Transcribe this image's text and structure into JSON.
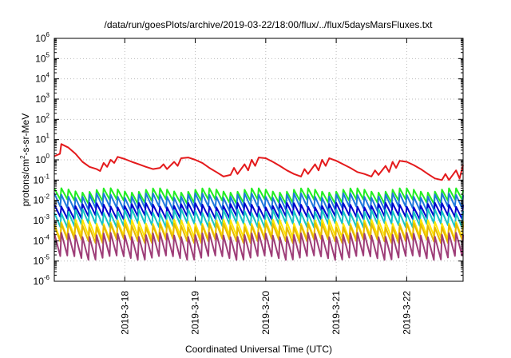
{
  "chart_data": {
    "type": "line",
    "title": "/data/run/goesPlots/archive/2019-03-22/18:00/flux/../flux/5daysMarsFluxes.txt",
    "xlabel": "Coordinated Universal Time (UTC)",
    "ylabel_parts": {
      "pre": "protons/cm",
      "sup": "2",
      "post": "-s-sr-MeV"
    },
    "yscale": "log",
    "ylim": [
      1e-06,
      1000000.0
    ],
    "xlim": [
      17.0,
      22.8
    ],
    "grid": true,
    "y_ticks": [
      {
        "base": "10",
        "exp": "-6",
        "value": 1e-06
      },
      {
        "base": "10",
        "exp": "-5",
        "value": 1e-05
      },
      {
        "base": "10",
        "exp": "-4",
        "value": 0.0001
      },
      {
        "base": "10",
        "exp": "-3",
        "value": 0.001
      },
      {
        "base": "10",
        "exp": "-2",
        "value": 0.01
      },
      {
        "base": "10",
        "exp": "-1",
        "value": 0.1
      },
      {
        "base": "10",
        "exp": "0",
        "value": 1
      },
      {
        "base": "10",
        "exp": "1",
        "value": 10
      },
      {
        "base": "10",
        "exp": "2",
        "value": 100
      },
      {
        "base": "10",
        "exp": "3",
        "value": 1000
      },
      {
        "base": "10",
        "exp": "4",
        "value": 10000
      },
      {
        "base": "10",
        "exp": "5",
        "value": 100000
      },
      {
        "base": "10",
        "exp": "6",
        "value": 1000000
      }
    ],
    "x_ticks": [
      {
        "label": "2019-3-18",
        "value": 18
      },
      {
        "label": "2019-3-19",
        "value": 19
      },
      {
        "label": "2019-3-20",
        "value": 20
      },
      {
        "label": "2019-3-21",
        "value": 21
      },
      {
        "label": "2019-3-22",
        "value": 22
      }
    ],
    "series": [
      {
        "color": "#e41a1c",
        "points": [
          [
            17.0,
            1.5
          ],
          [
            17.08,
            2.0
          ],
          [
            17.1,
            6.0
          ],
          [
            17.2,
            4.0
          ],
          [
            17.3,
            2.0
          ],
          [
            17.4,
            0.8
          ],
          [
            17.5,
            0.45
          ],
          [
            17.6,
            0.35
          ],
          [
            17.65,
            0.28
          ],
          [
            17.7,
            0.7
          ],
          [
            17.75,
            0.45
          ],
          [
            17.8,
            1.0
          ],
          [
            17.85,
            0.7
          ],
          [
            17.9,
            1.4
          ],
          [
            18.0,
            1.1
          ],
          [
            18.1,
            0.8
          ],
          [
            18.2,
            0.6
          ],
          [
            18.3,
            0.45
          ],
          [
            18.4,
            0.35
          ],
          [
            18.5,
            0.4
          ],
          [
            18.55,
            0.6
          ],
          [
            18.6,
            0.35
          ],
          [
            18.7,
            0.8
          ],
          [
            18.75,
            0.5
          ],
          [
            18.8,
            1.2
          ],
          [
            18.9,
            1.3
          ],
          [
            19.0,
            1.0
          ],
          [
            19.1,
            0.7
          ],
          [
            19.2,
            0.4
          ],
          [
            19.3,
            0.25
          ],
          [
            19.4,
            0.15
          ],
          [
            19.5,
            0.18
          ],
          [
            19.55,
            0.4
          ],
          [
            19.6,
            0.2
          ],
          [
            19.7,
            0.6
          ],
          [
            19.75,
            0.3
          ],
          [
            19.8,
            1.0
          ],
          [
            19.85,
            0.5
          ],
          [
            19.9,
            1.3
          ],
          [
            20.0,
            1.2
          ],
          [
            20.1,
            0.8
          ],
          [
            20.2,
            0.5
          ],
          [
            20.3,
            0.3
          ],
          [
            20.4,
            0.2
          ],
          [
            20.5,
            0.15
          ],
          [
            20.55,
            0.35
          ],
          [
            20.6,
            0.2
          ],
          [
            20.7,
            0.6
          ],
          [
            20.75,
            0.3
          ],
          [
            20.8,
            1.0
          ],
          [
            20.85,
            0.5
          ],
          [
            20.9,
            1.2
          ],
          [
            21.0,
            0.9
          ],
          [
            21.1,
            0.6
          ],
          [
            21.2,
            0.4
          ],
          [
            21.3,
            0.25
          ],
          [
            21.4,
            0.2
          ],
          [
            21.5,
            0.15
          ],
          [
            21.55,
            0.3
          ],
          [
            21.6,
            0.18
          ],
          [
            21.7,
            0.5
          ],
          [
            21.75,
            0.25
          ],
          [
            21.8,
            0.8
          ],
          [
            21.85,
            0.4
          ],
          [
            21.9,
            0.9
          ],
          [
            22.0,
            0.8
          ],
          [
            22.1,
            0.55
          ],
          [
            22.2,
            0.35
          ],
          [
            22.3,
            0.2
          ],
          [
            22.4,
            0.12
          ],
          [
            22.5,
            0.1
          ],
          [
            22.55,
            0.2
          ],
          [
            22.6,
            0.1
          ],
          [
            22.7,
            0.3
          ],
          [
            22.75,
            0.12
          ],
          [
            22.8,
            0.55
          ]
        ]
      },
      {
        "color": "#22ee22",
        "baseline": 0.009,
        "peak": 0.032
      },
      {
        "color": "#1f77dd",
        "baseline": 0.004,
        "peak": 0.018
      },
      {
        "color": "#0000cc",
        "baseline": 0.0015,
        "peak": 0.006
      },
      {
        "color": "#17c4c4",
        "baseline": 0.0006,
        "peak": 0.003
      },
      {
        "color": "#ffe600",
        "baseline": 0.00015,
        "peak": 0.0009
      },
      {
        "color": "#e6b800",
        "baseline": 0.0001,
        "peak": 0.0006
      },
      {
        "color": "#9e3d78",
        "baseline": 1.5e-05,
        "peak": 0.0002
      }
    ],
    "sawtooth_period": 0.1
  }
}
